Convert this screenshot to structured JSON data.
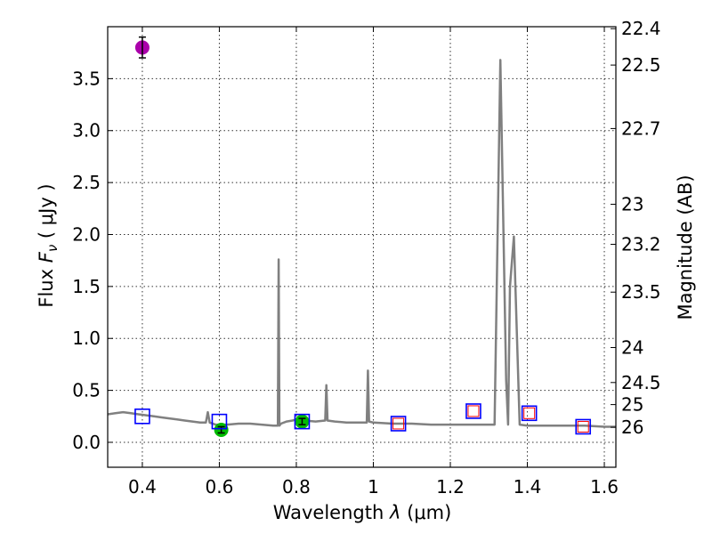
{
  "chart_data": {
    "type": "line",
    "xlabel": "Wavelength",
    "xlabel_symbol": "λ",
    "xlabel_unit": "(μm)",
    "ylabel": "Flux",
    "ylabel_symbol": "F",
    "ylabel_subscript": "ν",
    "ylabel_unit": "( μJy )",
    "y2label": "Magnitude (AB)",
    "xlim": [
      0.31,
      1.63
    ],
    "ylim": [
      -0.24,
      4.0
    ],
    "grid": true,
    "x_ticks": [
      0.4,
      0.6,
      0.8,
      1.0,
      1.2,
      1.4,
      1.6
    ],
    "x_tick_labels": [
      "0.4",
      "0.6",
      "0.8",
      "1",
      "1.2",
      "1.4",
      "1.6"
    ],
    "y_ticks": [
      0.0,
      0.5,
      1.0,
      1.5,
      2.0,
      2.5,
      3.0,
      3.5
    ],
    "y_tick_labels": [
      "0.0",
      "0.5",
      "1.0",
      "1.5",
      "2.0",
      "2.5",
      "3.0",
      "3.5"
    ],
    "mag_ticks": [
      22.4,
      22.5,
      22.7,
      23.0,
      23.2,
      23.5,
      24.0,
      24.5,
      25.0,
      26.0
    ],
    "mag_tick_labels": [
      "22.4",
      "22.5",
      "22.7",
      "23",
      "23.2",
      "23.5",
      "24",
      "24.5",
      "25",
      "26"
    ],
    "colors": {
      "spectrum": "#808080",
      "model_box": "#0000ff",
      "model_box_inner": "#ff0000",
      "obs_green": "#00bb00",
      "obs_purple": "#aa00aa"
    },
    "series": [
      {
        "name": "model spectrum",
        "x": [
          0.31,
          0.33,
          0.35,
          0.37,
          0.39,
          0.41,
          0.43,
          0.45,
          0.47,
          0.49,
          0.51,
          0.53,
          0.55,
          0.565,
          0.57,
          0.575,
          0.59,
          0.62,
          0.65,
          0.68,
          0.71,
          0.74,
          0.752,
          0.754,
          0.756,
          0.76,
          0.775,
          0.79,
          0.8,
          0.82,
          0.85,
          0.875,
          0.878,
          0.881,
          0.9,
          0.93,
          0.96,
          0.983,
          0.986,
          0.989,
          1.0,
          1.05,
          1.1,
          1.15,
          1.2,
          1.25,
          1.3,
          1.315,
          1.33,
          1.345,
          1.35,
          1.355,
          1.365,
          1.38,
          1.4,
          1.45,
          1.5,
          1.55,
          1.6,
          1.63
        ],
        "y": [
          0.27,
          0.28,
          0.29,
          0.28,
          0.27,
          0.26,
          0.25,
          0.24,
          0.23,
          0.22,
          0.21,
          0.2,
          0.19,
          0.19,
          0.29,
          0.19,
          0.17,
          0.17,
          0.18,
          0.18,
          0.17,
          0.16,
          0.16,
          1.76,
          0.16,
          0.18,
          0.2,
          0.21,
          0.22,
          0.21,
          0.2,
          0.21,
          0.55,
          0.21,
          0.2,
          0.19,
          0.19,
          0.19,
          0.69,
          0.2,
          0.19,
          0.18,
          0.18,
          0.17,
          0.17,
          0.17,
          0.17,
          0.17,
          3.68,
          0.6,
          0.17,
          1.5,
          1.98,
          0.17,
          0.16,
          0.16,
          0.16,
          0.16,
          0.15,
          0.15
        ]
      },
      {
        "name": "model photometry",
        "marker": "open-square",
        "x": [
          0.4,
          0.6,
          0.815,
          1.065,
          1.26,
          1.405,
          1.545
        ],
        "y": [
          0.25,
          0.2,
          0.2,
          0.18,
          0.3,
          0.28,
          0.15
        ],
        "inner_red": [
          false,
          false,
          false,
          true,
          true,
          true,
          true
        ]
      },
      {
        "name": "observed photometry",
        "marker": "filled-circle",
        "x": [
          0.4,
          0.605,
          0.815
        ],
        "y": [
          3.8,
          0.12,
          0.2
        ],
        "yerr": [
          0.1,
          0.03,
          0.03
        ],
        "colors": [
          "#aa00aa",
          "#00bb00",
          "#00bb00"
        ]
      }
    ]
  }
}
